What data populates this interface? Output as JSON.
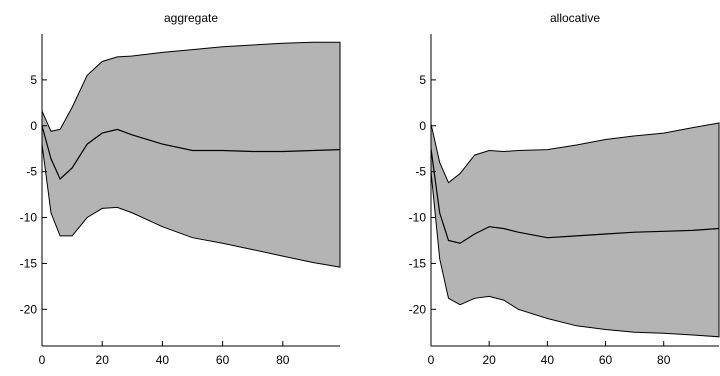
{
  "chart_data": [
    {
      "type": "area",
      "title": "aggregate",
      "xlim": [
        0,
        99
      ],
      "ylim": [
        -24,
        10
      ],
      "xticks": [
        0,
        20,
        40,
        60,
        80
      ],
      "yticks": [
        5,
        0,
        -5,
        -10,
        -15,
        -20
      ],
      "grid": false,
      "colors": {
        "band": "#b4b4b4",
        "line": "#000000"
      },
      "x": [
        0,
        3,
        6,
        10,
        15,
        20,
        25,
        30,
        40,
        50,
        60,
        70,
        80,
        90,
        99
      ],
      "series": [
        {
          "role": "upper",
          "values": [
            1.6,
            -0.6,
            -0.4,
            2.0,
            5.5,
            7.0,
            7.5,
            7.6,
            8.0,
            8.3,
            8.6,
            8.8,
            9.0,
            9.1,
            9.1
          ]
        },
        {
          "role": "median",
          "values": [
            0.0,
            -3.6,
            -5.8,
            -4.6,
            -2.0,
            -0.8,
            -0.4,
            -1.0,
            -2.0,
            -2.7,
            -2.7,
            -2.8,
            -2.8,
            -2.7,
            -2.6
          ]
        },
        {
          "role": "lower",
          "values": [
            -2.0,
            -9.5,
            -12.0,
            -12.0,
            -10.0,
            -9.0,
            -8.9,
            -9.5,
            -11.0,
            -12.2,
            -12.8,
            -13.5,
            -14.2,
            -14.9,
            -15.4
          ]
        }
      ]
    },
    {
      "type": "area",
      "title": "allocative",
      "xlim": [
        0,
        99
      ],
      "ylim": [
        -24,
        10
      ],
      "xticks": [
        0,
        20,
        40,
        60,
        80
      ],
      "yticks": [
        5,
        0,
        -5,
        -10,
        -15,
        -20
      ],
      "grid": false,
      "colors": {
        "band": "#b4b4b4",
        "line": "#000000"
      },
      "x": [
        0,
        3,
        6,
        10,
        15,
        20,
        25,
        30,
        40,
        50,
        60,
        70,
        80,
        90,
        99
      ],
      "series": [
        {
          "role": "upper",
          "values": [
            0.2,
            -4.0,
            -6.2,
            -5.2,
            -3.2,
            -2.7,
            -2.8,
            -2.7,
            -2.6,
            -2.1,
            -1.5,
            -1.1,
            -0.8,
            -0.2,
            0.3
          ]
        },
        {
          "role": "median",
          "values": [
            -2.5,
            -9.5,
            -12.5,
            -12.8,
            -11.8,
            -11.0,
            -11.2,
            -11.6,
            -12.2,
            -12.0,
            -11.8,
            -11.6,
            -11.5,
            -11.4,
            -11.2
          ]
        },
        {
          "role": "lower",
          "values": [
            -5.0,
            -14.5,
            -18.8,
            -19.5,
            -18.8,
            -18.6,
            -19.0,
            -20.0,
            -21.0,
            -21.8,
            -22.2,
            -22.5,
            -22.6,
            -22.8,
            -23.0
          ]
        }
      ]
    }
  ]
}
